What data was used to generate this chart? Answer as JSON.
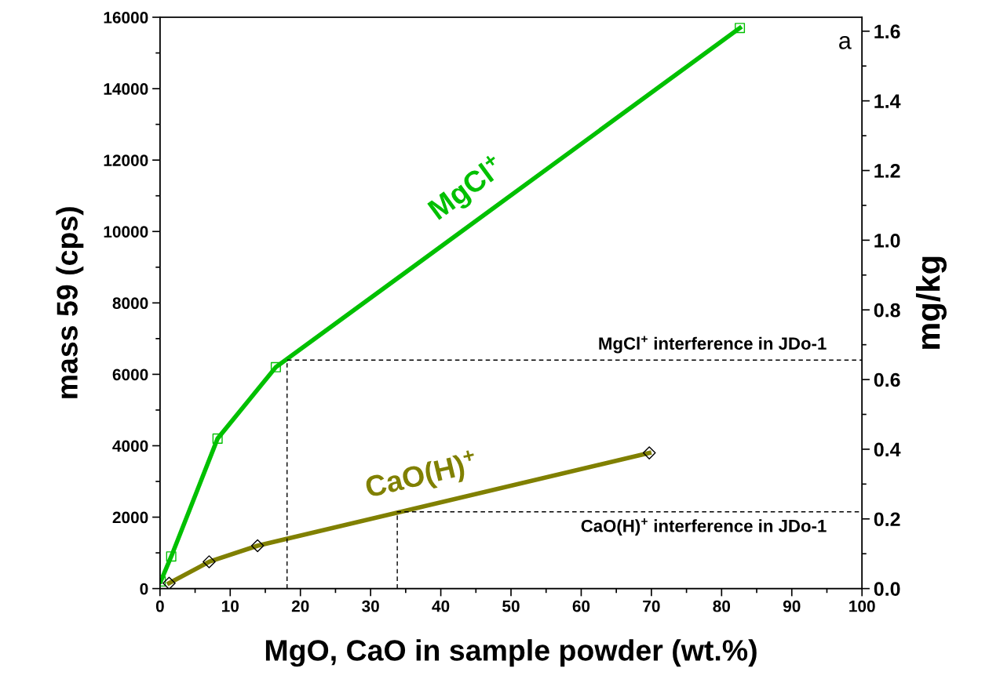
{
  "chart_data": {
    "type": "line",
    "xlabel": "MgO, CaO in sample powder (wt.%)",
    "ylabel": "mass 59 (cps)",
    "y2label": "mg/kg",
    "xlim": [
      0,
      100
    ],
    "xticks": [
      0,
      10,
      20,
      30,
      40,
      50,
      60,
      70,
      80,
      90,
      100
    ],
    "ylim": [
      0,
      16000
    ],
    "yticks": [
      0,
      2000,
      4000,
      6000,
      8000,
      10000,
      12000,
      14000,
      16000
    ],
    "y2lim": [
      0,
      1.64
    ],
    "y2ticks": [
      {
        "value": 0,
        "label": "0.0"
      },
      {
        "value": 0.2,
        "label": "0.2"
      },
      {
        "value": 0.4,
        "label": "0.4"
      },
      {
        "value": 0.6,
        "label": "0.6"
      },
      {
        "value": 0.8,
        "label": "0.8"
      },
      {
        "value": 1.0,
        "label": "1.0"
      },
      {
        "value": 1.2,
        "label": "1.2"
      },
      {
        "value": 1.4,
        "label": "1.4"
      },
      {
        "value": 1.6,
        "label": "1.6"
      }
    ],
    "grid": false,
    "series": [
      {
        "name": "MgCl$^{+}$",
        "color": "#00c000",
        "marker": "square",
        "x": [
          0.1,
          1.6,
          8.2,
          16.5,
          82.6
        ],
        "values": [
          200,
          900,
          4200,
          6200,
          15700
        ]
      },
      {
        "name": "CaO(H)$^{+}$",
        "color": "#808000",
        "marker": "diamond",
        "x": [
          1.3,
          7.0,
          13.9,
          69.7
        ],
        "values": [
          150,
          750,
          1200,
          3800
        ]
      },
      {
        "color": "#000000",
        "marker": "none",
        "line_style": "dashed",
        "x": [
          18.1,
          18.1,
          100
        ],
        "values": [
          0,
          6400,
          6400
        ]
      },
      {
        "color": "#000000",
        "marker": "none",
        "line_style": "dashed",
        "x": [
          33.8,
          33.8,
          100
        ],
        "values": [
          0,
          2150,
          2150
        ]
      }
    ],
    "annotations": [
      "a",
      {
        "text": "MgCl$^{+}$ interference in JDo-1",
        "x": 95,
        "y": 6400
      },
      {
        "text": "CaO(H)$^{+}$ interference in JDo-1",
        "x": 95,
        "y": 2150
      }
    ]
  }
}
